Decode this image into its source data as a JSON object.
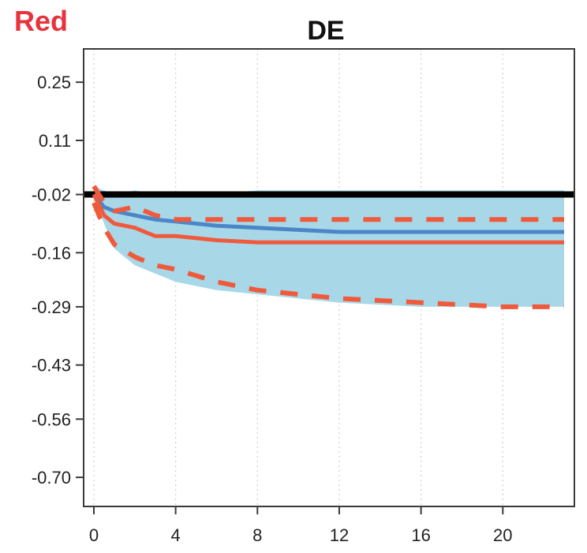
{
  "corner_label": "Red",
  "colors": {
    "corner_label": "#e8323c",
    "band": "#a8d8e8",
    "median_line": "#4a86c8",
    "point_line": "#f05a3c",
    "bounds": "#f05a3c",
    "zero_line": "#000000"
  },
  "chart_data": {
    "type": "line",
    "title": "DE",
    "xlabel": "",
    "ylabel": "",
    "xlim": [
      -0.5,
      23.5
    ],
    "ylim": [
      -0.77,
      0.33
    ],
    "x_ticks": [
      0,
      4,
      8,
      12,
      16,
      20
    ],
    "x_tick_labels": [
      "0",
      "4",
      "8",
      "12",
      "16",
      "20"
    ],
    "y_ticks": [
      0.25,
      0.11,
      -0.02,
      -0.16,
      -0.29,
      -0.43,
      -0.56,
      -0.7
    ],
    "y_tick_labels": [
      "0.25",
      "0.11",
      "-0.02",
      "-0.16",
      "-0.29",
      "-0.43",
      "-0.56",
      "-0.70"
    ],
    "grid": "vertical-dotted",
    "reference_line": {
      "y": -0.02
    },
    "band": {
      "x": [
        0,
        0.5,
        1,
        2,
        3,
        4,
        6,
        8,
        10,
        12,
        14,
        16,
        18,
        20,
        22,
        23
      ],
      "upper": [
        0.0,
        -0.01,
        -0.02,
        -0.01,
        -0.02,
        -0.02,
        -0.02,
        -0.01,
        -0.01,
        -0.01,
        -0.01,
        -0.01,
        -0.01,
        -0.01,
        -0.01,
        -0.01
      ],
      "lower": [
        -0.02,
        -0.09,
        -0.15,
        -0.19,
        -0.21,
        -0.23,
        -0.25,
        -0.26,
        -0.27,
        -0.28,
        -0.285,
        -0.29,
        -0.29,
        -0.29,
        -0.29,
        -0.29
      ]
    },
    "series": [
      {
        "style": "solid-blue",
        "x": [
          0,
          0.5,
          1,
          2,
          3,
          4,
          6,
          8,
          10,
          12,
          14,
          16,
          18,
          20,
          22,
          23
        ],
        "y": [
          -0.02,
          -0.05,
          -0.06,
          -0.07,
          -0.08,
          -0.085,
          -0.095,
          -0.1,
          -0.105,
          -0.11,
          -0.11,
          -0.11,
          -0.11,
          -0.11,
          -0.11,
          -0.11
        ]
      },
      {
        "style": "solid-red",
        "x": [
          0,
          0.5,
          1,
          2,
          3,
          4,
          6,
          8,
          10,
          12,
          14,
          16,
          18,
          20,
          22,
          23
        ],
        "y": [
          -0.02,
          -0.07,
          -0.09,
          -0.1,
          -0.12,
          -0.12,
          -0.13,
          -0.135,
          -0.135,
          -0.135,
          -0.135,
          -0.135,
          -0.135,
          -0.135,
          -0.135,
          -0.135
        ]
      },
      {
        "style": "dashed-red-upper",
        "x": [
          0,
          0.5,
          1,
          2,
          3,
          4,
          6,
          8,
          10,
          12,
          14,
          16,
          18,
          20,
          22,
          23
        ],
        "y": [
          0.0,
          -0.04,
          -0.06,
          -0.05,
          -0.07,
          -0.08,
          -0.08,
          -0.08,
          -0.08,
          -0.08,
          -0.08,
          -0.08,
          -0.08,
          -0.08,
          -0.08,
          -0.08
        ]
      },
      {
        "style": "dashed-red-lower",
        "x": [
          0,
          0.5,
          1,
          2,
          3,
          4,
          6,
          8,
          10,
          12,
          14,
          16,
          18,
          20,
          22,
          23
        ],
        "y": [
          -0.04,
          -0.1,
          -0.14,
          -0.17,
          -0.19,
          -0.2,
          -0.23,
          -0.25,
          -0.26,
          -0.27,
          -0.275,
          -0.28,
          -0.285,
          -0.29,
          -0.29,
          -0.29
        ]
      }
    ]
  }
}
